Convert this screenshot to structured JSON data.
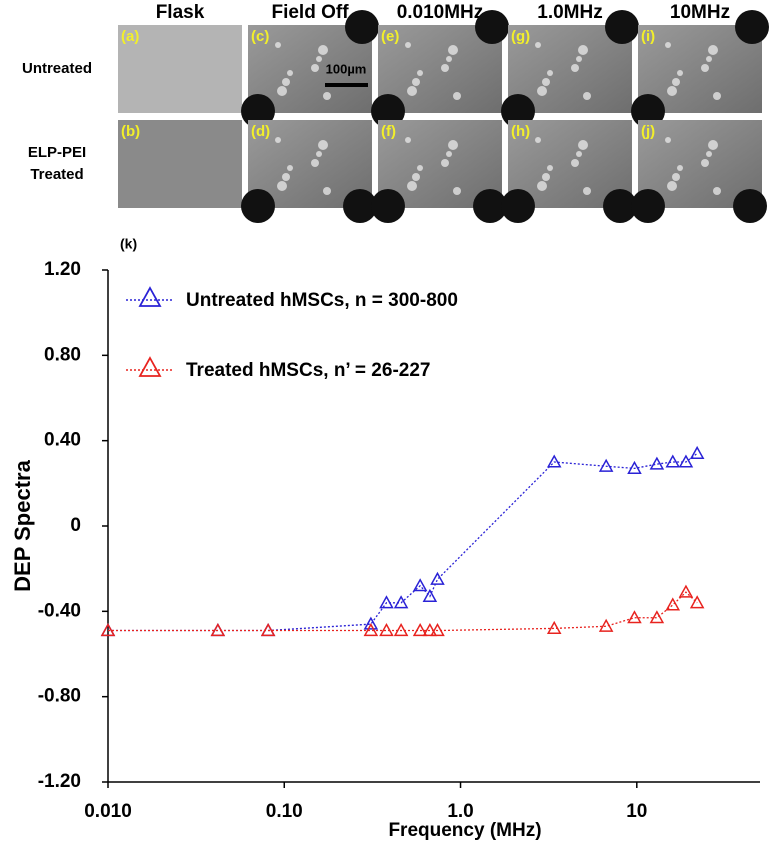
{
  "figure": {
    "columns": [
      "Flask",
      "Field Off",
      "0.010MHz",
      "1.0MHz",
      "10MHz"
    ],
    "rows": [
      "Untreated",
      "ELP-PEI\nTreated"
    ],
    "panels": [
      [
        "(a)",
        "(c)",
        "(e)",
        "(g)",
        "(i)"
      ],
      [
        "(b)",
        "(d)",
        "(f)",
        "(h)",
        "(j)"
      ]
    ],
    "scale_bar": "100µm"
  },
  "chart_data": {
    "type": "line",
    "panel_label": "(k)",
    "x_label": "Frequency (MHz)",
    "y_label": "DEP Spectra",
    "log_x": true,
    "xlim": [
      0.01,
      50
    ],
    "xticks": [
      {
        "value": 0.01,
        "label": "0.010"
      },
      {
        "value": 0.1,
        "label": "0.10"
      },
      {
        "value": 1,
        "label": "1.0"
      },
      10
    ],
    "ylim": [
      -1.2,
      1.2
    ],
    "yticks": [
      {
        "value": 1.2,
        "label": "1.20"
      },
      {
        "value": 0.8,
        "label": "0.80"
      },
      {
        "value": 0.4,
        "label": "0.40"
      },
      0,
      {
        "value": -0.4,
        "label": "-0.40"
      },
      {
        "value": -0.8,
        "label": "-0.80"
      },
      {
        "value": -1.2,
        "label": "-1.20"
      }
    ],
    "legend": "upper left",
    "series": [
      {
        "name": "Untreated hMSCs, n = 300-800",
        "color": "#2a22d6",
        "x": [
          0.01,
          0.042,
          0.081,
          0.31,
          0.38,
          0.46,
          0.59,
          0.67,
          0.74,
          3.4,
          6.7,
          9.7,
          13,
          16,
          19,
          22
        ],
        "values": [
          -0.49,
          -0.49,
          -0.49,
          -0.46,
          -0.36,
          -0.36,
          -0.28,
          -0.33,
          -0.25,
          0.3,
          0.28,
          0.27,
          0.29,
          0.3,
          0.3,
          0.34
        ]
      },
      {
        "name": "Treated hMSCs, n’ = 26-227",
        "color": "#e8231f",
        "x": [
          0.01,
          0.042,
          0.081,
          0.31,
          0.38,
          0.46,
          0.59,
          0.67,
          0.74,
          3.4,
          6.7,
          9.7,
          13,
          16,
          19,
          22
        ],
        "values": [
          -0.49,
          -0.49,
          -0.49,
          -0.49,
          -0.49,
          -0.49,
          -0.49,
          -0.49,
          -0.49,
          -0.48,
          -0.47,
          -0.43,
          -0.43,
          -0.37,
          -0.31,
          -0.36
        ]
      }
    ]
  }
}
